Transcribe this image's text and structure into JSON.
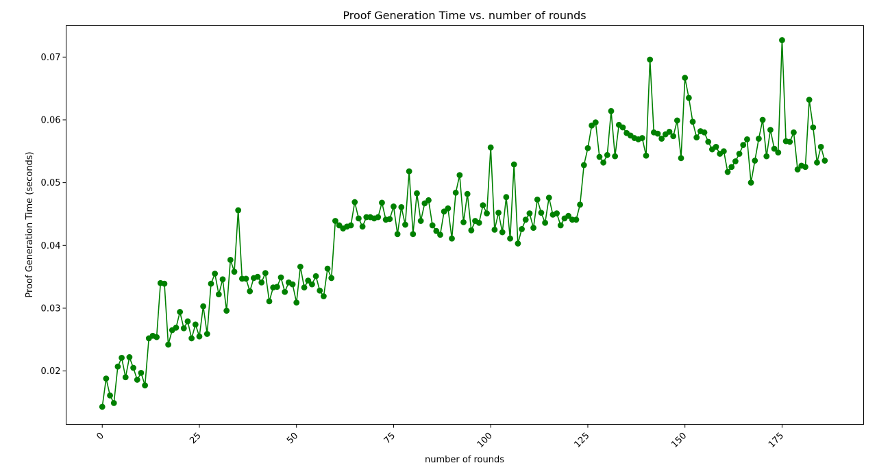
{
  "chart_data": {
    "type": "line",
    "title": "Proof Generation Time vs. number of rounds",
    "xlabel": "number of rounds",
    "ylabel": "Proof Generation Time (seconds)",
    "xlim": [
      -9.3,
      196
    ],
    "ylim": [
      0.0115,
      0.075
    ],
    "xticks": [
      0,
      25,
      50,
      75,
      100,
      125,
      150,
      175
    ],
    "xtick_labels": [
      "0",
      "25",
      "50",
      "75",
      "100",
      "125",
      "150",
      "175"
    ],
    "xtick_rotation": 45,
    "yticks": [
      0.02,
      0.03,
      0.04,
      0.05,
      0.06,
      0.07
    ],
    "ytick_labels": [
      "0.02",
      "0.03",
      "0.04",
      "0.05",
      "0.06",
      "0.07"
    ],
    "grid": false,
    "series": [
      {
        "color": "#008000",
        "marker": "circle",
        "x": [
          0,
          1,
          2,
          3,
          4,
          5,
          6,
          7,
          8,
          9,
          10,
          11,
          12,
          13,
          14,
          15,
          16,
          17,
          18,
          19,
          20,
          21,
          22,
          23,
          24,
          25,
          26,
          27,
          28,
          29,
          30,
          31,
          32,
          33,
          34,
          35,
          36,
          37,
          38,
          39,
          40,
          41,
          42,
          43,
          44,
          45,
          46,
          47,
          48,
          49,
          50,
          51,
          52,
          53,
          54,
          55,
          56,
          57,
          58,
          59,
          60,
          61,
          62,
          63,
          64,
          65,
          66,
          67,
          68,
          69,
          70,
          71,
          72,
          73,
          74,
          75,
          76,
          77,
          78,
          79,
          80,
          81,
          82,
          83,
          84,
          85,
          86,
          87,
          88,
          89,
          90,
          91,
          92,
          93,
          94,
          95,
          96,
          97,
          98,
          99,
          100,
          101,
          102,
          103,
          104,
          105,
          106,
          107,
          108,
          109,
          110,
          111,
          112,
          113,
          114,
          115,
          116,
          117,
          118,
          119,
          120,
          121,
          122,
          123,
          124,
          125,
          126,
          127,
          128,
          129,
          130,
          131,
          132,
          133,
          134,
          135,
          136,
          137,
          138,
          139,
          140,
          141,
          142,
          143,
          144,
          145,
          146,
          147,
          148,
          149,
          150,
          151,
          152,
          153,
          154,
          155,
          156,
          157,
          158,
          159,
          160,
          161,
          162,
          163,
          164,
          165,
          166,
          167,
          168,
          169,
          170,
          171,
          172,
          173,
          174,
          175,
          176,
          177,
          178,
          179,
          180,
          181,
          182,
          183,
          184,
          185,
          186
        ],
        "values": [
          0.0143,
          0.0188,
          0.0161,
          0.0149,
          0.0207,
          0.0221,
          0.019,
          0.0222,
          0.0205,
          0.0186,
          0.0197,
          0.0177,
          0.0252,
          0.0256,
          0.0254,
          0.034,
          0.0339,
          0.0242,
          0.0265,
          0.0269,
          0.0294,
          0.0268,
          0.0279,
          0.0252,
          0.0274,
          0.0255,
          0.0303,
          0.0259,
          0.0339,
          0.0355,
          0.0322,
          0.0346,
          0.0296,
          0.0377,
          0.0358,
          0.0456,
          0.0347,
          0.0347,
          0.0327,
          0.0348,
          0.035,
          0.0341,
          0.0356,
          0.0311,
          0.0333,
          0.0334,
          0.0349,
          0.0326,
          0.0341,
          0.0338,
          0.0309,
          0.0366,
          0.0333,
          0.0344,
          0.0338,
          0.0351,
          0.0328,
          0.0319,
          0.0363,
          0.0348,
          0.0439,
          0.0432,
          0.0427,
          0.043,
          0.0432,
          0.0469,
          0.0443,
          0.043,
          0.0445,
          0.0445,
          0.0443,
          0.0445,
          0.0468,
          0.0441,
          0.0442,
          0.0462,
          0.0418,
          0.0461,
          0.0433,
          0.0518,
          0.0418,
          0.0483,
          0.0439,
          0.0467,
          0.0472,
          0.0432,
          0.0423,
          0.0417,
          0.0454,
          0.0459,
          0.0411,
          0.0484,
          0.0512,
          0.0437,
          0.0482,
          0.0424,
          0.0439,
          0.0436,
          0.0464,
          0.0451,
          0.0556,
          0.0425,
          0.0452,
          0.0421,
          0.0477,
          0.0411,
          0.0529,
          0.0403,
          0.0426,
          0.0441,
          0.0451,
          0.0428,
          0.0473,
          0.0452,
          0.0436,
          0.0476,
          0.0449,
          0.0451,
          0.0432,
          0.0443,
          0.0447,
          0.0441,
          0.0441,
          0.0465,
          0.0528,
          0.0555,
          0.0591,
          0.0596,
          0.0541,
          0.0532,
          0.0544,
          0.0614,
          0.0542,
          0.0592,
          0.0588,
          0.0579,
          0.0575,
          0.0571,
          0.0569,
          0.0571,
          0.0543,
          0.0696,
          0.058,
          0.0578,
          0.057,
          0.0577,
          0.0581,
          0.0574,
          0.0599,
          0.0539,
          0.0667,
          0.0635,
          0.0597,
          0.0572,
          0.0582,
          0.058,
          0.0565,
          0.0553,
          0.0557,
          0.0546,
          0.055,
          0.0517,
          0.0525,
          0.0534,
          0.0546,
          0.056,
          0.0569,
          0.05,
          0.0535,
          0.057,
          0.06,
          0.0542,
          0.0584,
          0.0554,
          0.0548,
          0.0727,
          0.0566,
          0.0565,
          0.058,
          0.0521,
          0.0527,
          0.0525,
          0.0632,
          0.0588,
          0.0532,
          0.0557,
          0.0535
        ]
      }
    ]
  }
}
